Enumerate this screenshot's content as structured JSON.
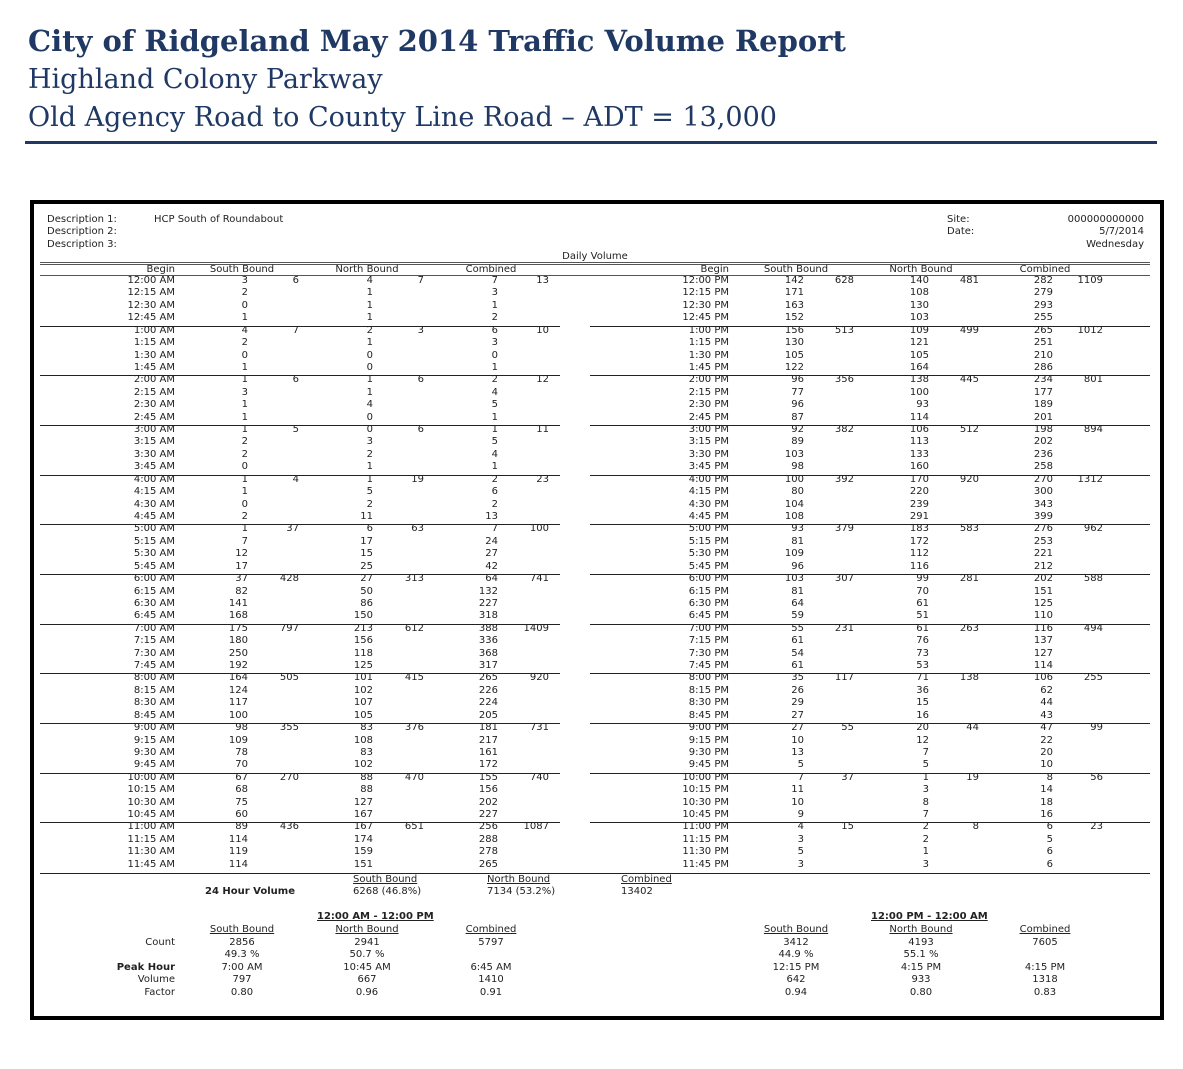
{
  "header": {
    "title": "City of Ridgeland May 2014 Traffic Volume Report",
    "road": "Highland Colony Parkway",
    "segment": "Old Agency Road to County Line Road – ADT = 13,000"
  },
  "meta": {
    "desc1_label": "Description 1:",
    "desc1_value": "HCP South of Roundabout",
    "desc2_label": "Description 2:",
    "desc3_label": "Description 3:",
    "site_label": "Site:",
    "site_value": "000000000000",
    "date_label": "Date:",
    "date_value": "5/7/2014",
    "day_value": "Wednesday",
    "daily_volume": "Daily Volume"
  },
  "columns": {
    "begin": "Begin",
    "sb": "South Bound",
    "nb": "North Bound",
    "comb": "Combined"
  },
  "am": {
    "blocks": [
      {
        "rows": [
          [
            "12:00 AM",
            "3",
            "4",
            "7"
          ],
          [
            "12:15 AM",
            "2",
            "1",
            "3"
          ],
          [
            "12:30 AM",
            "0",
            "1",
            "1"
          ],
          [
            "12:45 AM",
            "1",
            "1",
            "2"
          ]
        ],
        "totals": [
          "6",
          "7",
          "13"
        ]
      },
      {
        "rows": [
          [
            "1:00 AM",
            "4",
            "2",
            "6"
          ],
          [
            "1:15 AM",
            "2",
            "1",
            "3"
          ],
          [
            "1:30 AM",
            "0",
            "0",
            "0"
          ],
          [
            "1:45 AM",
            "1",
            "0",
            "1"
          ]
        ],
        "totals": [
          "7",
          "3",
          "10"
        ]
      },
      {
        "rows": [
          [
            "2:00 AM",
            "1",
            "1",
            "2"
          ],
          [
            "2:15 AM",
            "3",
            "1",
            "4"
          ],
          [
            "2:30 AM",
            "1",
            "4",
            "5"
          ],
          [
            "2:45 AM",
            "1",
            "0",
            "1"
          ]
        ],
        "totals": [
          "6",
          "6",
          "12"
        ]
      },
      {
        "rows": [
          [
            "3:00 AM",
            "1",
            "0",
            "1"
          ],
          [
            "3:15 AM",
            "2",
            "3",
            "5"
          ],
          [
            "3:30 AM",
            "2",
            "2",
            "4"
          ],
          [
            "3:45 AM",
            "0",
            "1",
            "1"
          ]
        ],
        "totals": [
          "5",
          "6",
          "11"
        ]
      },
      {
        "rows": [
          [
            "4:00 AM",
            "1",
            "1",
            "2"
          ],
          [
            "4:15 AM",
            "1",
            "5",
            "6"
          ],
          [
            "4:30 AM",
            "0",
            "2",
            "2"
          ],
          [
            "4:45 AM",
            "2",
            "11",
            "13"
          ]
        ],
        "totals": [
          "4",
          "19",
          "23"
        ]
      },
      {
        "rows": [
          [
            "5:00 AM",
            "1",
            "6",
            "7"
          ],
          [
            "5:15 AM",
            "7",
            "17",
            "24"
          ],
          [
            "5:30 AM",
            "12",
            "15",
            "27"
          ],
          [
            "5:45 AM",
            "17",
            "25",
            "42"
          ]
        ],
        "totals": [
          "37",
          "63",
          "100"
        ]
      },
      {
        "rows": [
          [
            "6:00 AM",
            "37",
            "27",
            "64"
          ],
          [
            "6:15 AM",
            "82",
            "50",
            "132"
          ],
          [
            "6:30 AM",
            "141",
            "86",
            "227"
          ],
          [
            "6:45 AM",
            "168",
            "150",
            "318"
          ]
        ],
        "totals": [
          "428",
          "313",
          "741"
        ]
      },
      {
        "rows": [
          [
            "7:00 AM",
            "175",
            "213",
            "388"
          ],
          [
            "7:15 AM",
            "180",
            "156",
            "336"
          ],
          [
            "7:30 AM",
            "250",
            "118",
            "368"
          ],
          [
            "7:45 AM",
            "192",
            "125",
            "317"
          ]
        ],
        "totals": [
          "797",
          "612",
          "1409"
        ]
      },
      {
        "rows": [
          [
            "8:00 AM",
            "164",
            "101",
            "265"
          ],
          [
            "8:15 AM",
            "124",
            "102",
            "226"
          ],
          [
            "8:30 AM",
            "117",
            "107",
            "224"
          ],
          [
            "8:45 AM",
            "100",
            "105",
            "205"
          ]
        ],
        "totals": [
          "505",
          "415",
          "920"
        ]
      },
      {
        "rows": [
          [
            "9:00 AM",
            "98",
            "83",
            "181"
          ],
          [
            "9:15 AM",
            "109",
            "108",
            "217"
          ],
          [
            "9:30 AM",
            "78",
            "83",
            "161"
          ],
          [
            "9:45 AM",
            "70",
            "102",
            "172"
          ]
        ],
        "totals": [
          "355",
          "376",
          "731"
        ]
      },
      {
        "rows": [
          [
            "10:00 AM",
            "67",
            "88",
            "155"
          ],
          [
            "10:15 AM",
            "68",
            "88",
            "156"
          ],
          [
            "10:30 AM",
            "75",
            "127",
            "202"
          ],
          [
            "10:45 AM",
            "60",
            "167",
            "227"
          ]
        ],
        "totals": [
          "270",
          "470",
          "740"
        ]
      },
      {
        "rows": [
          [
            "11:00 AM",
            "89",
            "167",
            "256"
          ],
          [
            "11:15 AM",
            "114",
            "174",
            "288"
          ],
          [
            "11:30 AM",
            "119",
            "159",
            "278"
          ],
          [
            "11:45 AM",
            "114",
            "151",
            "265"
          ]
        ],
        "totals": [
          "436",
          "651",
          "1087"
        ]
      }
    ]
  },
  "pm": {
    "blocks": [
      {
        "rows": [
          [
            "12:00 PM",
            "142",
            "140",
            "282"
          ],
          [
            "12:15 PM",
            "171",
            "108",
            "279"
          ],
          [
            "12:30 PM",
            "163",
            "130",
            "293"
          ],
          [
            "12:45 PM",
            "152",
            "103",
            "255"
          ]
        ],
        "totals": [
          "628",
          "481",
          "1109"
        ]
      },
      {
        "rows": [
          [
            "1:00 PM",
            "156",
            "109",
            "265"
          ],
          [
            "1:15 PM",
            "130",
            "121",
            "251"
          ],
          [
            "1:30 PM",
            "105",
            "105",
            "210"
          ],
          [
            "1:45 PM",
            "122",
            "164",
            "286"
          ]
        ],
        "totals": [
          "513",
          "499",
          "1012"
        ]
      },
      {
        "rows": [
          [
            "2:00 PM",
            "96",
            "138",
            "234"
          ],
          [
            "2:15 PM",
            "77",
            "100",
            "177"
          ],
          [
            "2:30 PM",
            "96",
            "93",
            "189"
          ],
          [
            "2:45 PM",
            "87",
            "114",
            "201"
          ]
        ],
        "totals": [
          "356",
          "445",
          "801"
        ]
      },
      {
        "rows": [
          [
            "3:00 PM",
            "92",
            "106",
            "198"
          ],
          [
            "3:15 PM",
            "89",
            "113",
            "202"
          ],
          [
            "3:30 PM",
            "103",
            "133",
            "236"
          ],
          [
            "3:45 PM",
            "98",
            "160",
            "258"
          ]
        ],
        "totals": [
          "382",
          "512",
          "894"
        ]
      },
      {
        "rows": [
          [
            "4:00 PM",
            "100",
            "170",
            "270"
          ],
          [
            "4:15 PM",
            "80",
            "220",
            "300"
          ],
          [
            "4:30 PM",
            "104",
            "239",
            "343"
          ],
          [
            "4:45 PM",
            "108",
            "291",
            "399"
          ]
        ],
        "totals": [
          "392",
          "920",
          "1312"
        ]
      },
      {
        "rows": [
          [
            "5:00 PM",
            "93",
            "183",
            "276"
          ],
          [
            "5:15 PM",
            "81",
            "172",
            "253"
          ],
          [
            "5:30 PM",
            "109",
            "112",
            "221"
          ],
          [
            "5:45 PM",
            "96",
            "116",
            "212"
          ]
        ],
        "totals": [
          "379",
          "583",
          "962"
        ]
      },
      {
        "rows": [
          [
            "6:00 PM",
            "103",
            "99",
            "202"
          ],
          [
            "6:15 PM",
            "81",
            "70",
            "151"
          ],
          [
            "6:30 PM",
            "64",
            "61",
            "125"
          ],
          [
            "6:45 PM",
            "59",
            "51",
            "110"
          ]
        ],
        "totals": [
          "307",
          "281",
          "588"
        ]
      },
      {
        "rows": [
          [
            "7:00 PM",
            "55",
            "61",
            "116"
          ],
          [
            "7:15 PM",
            "61",
            "76",
            "137"
          ],
          [
            "7:30 PM",
            "54",
            "73",
            "127"
          ],
          [
            "7:45 PM",
            "61",
            "53",
            "114"
          ]
        ],
        "totals": [
          "231",
          "263",
          "494"
        ]
      },
      {
        "rows": [
          [
            "8:00 PM",
            "35",
            "71",
            "106"
          ],
          [
            "8:15 PM",
            "26",
            "36",
            "62"
          ],
          [
            "8:30 PM",
            "29",
            "15",
            "44"
          ],
          [
            "8:45 PM",
            "27",
            "16",
            "43"
          ]
        ],
        "totals": [
          "117",
          "138",
          "255"
        ]
      },
      {
        "rows": [
          [
            "9:00 PM",
            "27",
            "20",
            "47"
          ],
          [
            "9:15 PM",
            "10",
            "12",
            "22"
          ],
          [
            "9:30 PM",
            "13",
            "7",
            "20"
          ],
          [
            "9:45 PM",
            "5",
            "5",
            "10"
          ]
        ],
        "totals": [
          "55",
          "44",
          "99"
        ]
      },
      {
        "rows": [
          [
            "10:00 PM",
            "7",
            "1",
            "8"
          ],
          [
            "10:15 PM",
            "11",
            "3",
            "14"
          ],
          [
            "10:30 PM",
            "10",
            "8",
            "18"
          ],
          [
            "10:45 PM",
            "9",
            "7",
            "16"
          ]
        ],
        "totals": [
          "37",
          "19",
          "56"
        ]
      },
      {
        "rows": [
          [
            "11:00 PM",
            "4",
            "2",
            "6"
          ],
          [
            "11:15 PM",
            "3",
            "2",
            "5"
          ],
          [
            "11:30 PM",
            "5",
            "1",
            "6"
          ],
          [
            "11:45 PM",
            "3",
            "3",
            "6"
          ]
        ],
        "totals": [
          "15",
          "8",
          "23"
        ]
      }
    ]
  },
  "volume24": {
    "label": "24 Hour Volume",
    "sb": "6268 (46.8%)",
    "nb": "7134 (53.2%)",
    "comb": "13402"
  },
  "summary": {
    "labels": {
      "count": "Count",
      "peak": "Peak Hour",
      "volume": "Volume",
      "factor": "Factor"
    },
    "am": {
      "period": "12:00 AM - 12:00 PM",
      "count": [
        "2856",
        "2941",
        "5797"
      ],
      "pct": [
        "49.3 %",
        "50.7 %"
      ],
      "peak": [
        "7:00 AM",
        "10:45 AM",
        "6:45 AM"
      ],
      "volume": [
        "797",
        "667",
        "1410"
      ],
      "factor": [
        "0.80",
        "0.96",
        "0.91"
      ]
    },
    "pm": {
      "period": "12:00 PM - 12:00 AM",
      "count": [
        "3412",
        "4193",
        "7605"
      ],
      "pct": [
        "44.9 %",
        "55.1 %"
      ],
      "peak": [
        "12:15 PM",
        "4:15 PM",
        "4:15 PM"
      ],
      "volume": [
        "642",
        "933",
        "1318"
      ],
      "factor": [
        "0.94",
        "0.80",
        "0.83"
      ]
    }
  }
}
